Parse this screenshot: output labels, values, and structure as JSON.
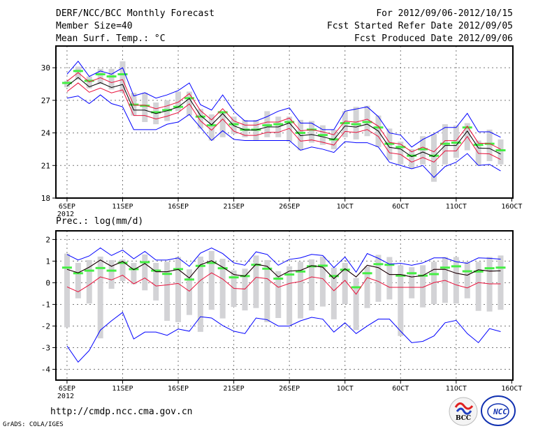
{
  "header": {
    "title": "DERF/NCC/BCC Monthly Forecast",
    "member_size": "Member Size=40",
    "variable": "Mean Surf. Temp.: °C",
    "period": "For 2012/09/06-2012/10/15",
    "fcst_started": "Fcst Started Refer Date 2012/09/05",
    "fcst_produced": "Fcst Produced Date 2012/09/06"
  },
  "footer": {
    "url": "http://cmdp.ncc.cma.gov.cn",
    "credit": "GrADS: COLA/IGES",
    "logo_bcc": "BCC",
    "logo_ncc": "NCC"
  },
  "colors": {
    "max_min": "#0000ff",
    "spread": "#e8103a",
    "mean": "#000000",
    "obs": "#44ee44",
    "range": "#d3d3d6",
    "grid": "#777777"
  },
  "chart_data": [
    {
      "type": "line",
      "title": "Mean Surf. Temp.: °C",
      "x_tick_labels": [
        "6SEP",
        "11SEP",
        "16SEP",
        "21SEP",
        "26SEP",
        "1OCT",
        "6OCT",
        "11OCT",
        "16OCT"
      ],
      "x_tick_days": [
        0,
        5,
        10,
        15,
        20,
        25,
        30,
        35,
        40
      ],
      "x_year_label": "2012",
      "y_ticks": [
        18,
        21,
        24,
        27,
        30
      ],
      "ylim": [
        18,
        32
      ],
      "xlim": [
        -1,
        40.1
      ],
      "grid": true,
      "days": 40,
      "mean": [
        28.31,
        29.1,
        28.24,
        28.63,
        28.18,
        28.46,
        26.1,
        26.1,
        25.78,
        26.04,
        26.38,
        27.17,
        25.61,
        24.75,
        25.78,
        24.66,
        24.27,
        24.27,
        24.55,
        24.55,
        24.92,
        23.74,
        23.85,
        23.64,
        23.38,
        24.64,
        24.54,
        24.81,
        24.17,
        22.67,
        22.52,
        21.81,
        22.24,
        21.81,
        22.84,
        22.84,
        24.17,
        22.61,
        22.57,
        22.05
      ],
      "spread_above": 0.45,
      "spread_below": 0.5,
      "max": [
        29.4,
        30.6,
        29.2,
        29.7,
        29.4,
        30.0,
        27.4,
        27.7,
        27.2,
        27.5,
        27.9,
        28.6,
        26.6,
        26.1,
        27.5,
        26.0,
        25.1,
        25.1,
        25.5,
        26.0,
        26.3,
        24.9,
        24.9,
        24.3,
        24.3,
        26.0,
        26.2,
        26.4,
        25.5,
        24.0,
        23.8,
        22.7,
        23.4,
        23.9,
        24.5,
        24.5,
        25.8,
        24.1,
        24.1,
        23.6
      ],
      "min": [
        27.2,
        27.4,
        26.7,
        27.5,
        26.7,
        26.4,
        24.3,
        24.3,
        24.3,
        24.8,
        25.0,
        25.7,
        24.5,
        23.3,
        24.2,
        23.4,
        23.3,
        23.3,
        23.3,
        23.3,
        23.3,
        22.4,
        22.7,
        22.5,
        22.2,
        23.2,
        23.1,
        23.1,
        22.7,
        21.3,
        21.0,
        20.7,
        21.0,
        19.9,
        20.9,
        21.3,
        22.1,
        21.0,
        21.1,
        20.5
      ],
      "obs": [
        28.6,
        29.7,
        28.8,
        29.4,
        29.2,
        29.4,
        26.6,
        26.5,
        25.9,
        26.1,
        26.4,
        27.2,
        25.5,
        24.7,
        25.9,
        24.8,
        24.3,
        24.3,
        24.7,
        24.8,
        25.0,
        24.0,
        24.3,
        23.8,
        23.4,
        24.9,
        24.8,
        25.0,
        24.5,
        23.0,
        22.7,
        21.9,
        22.5,
        21.9,
        23.0,
        23.1,
        24.5,
        22.9,
        23.0,
        22.4
      ],
      "range_high": [
        28.8,
        30.1,
        29.2,
        29.9,
        29.9,
        30.6,
        27.7,
        27.7,
        26.8,
        27.0,
        27.8,
        27.8,
        26.2,
        25.7,
        26.0,
        25.5,
        25.2,
        25.2,
        26.0,
        25.5,
        25.5,
        25.2,
        25.1,
        24.7,
        24.3,
        26.0,
        26.4,
        26.5,
        25.6,
        24.4,
        23.2,
        22.5,
        23.7,
        23.9,
        24.8,
        24.7,
        24.9,
        23.3,
        24.3,
        23.4
      ],
      "range_low": [
        28.2,
        28.9,
        28.1,
        28.5,
        28.0,
        27.7,
        25.6,
        25.0,
        24.8,
        25.1,
        26.0,
        25.6,
        24.4,
        23.3,
        23.6,
        23.9,
        23.6,
        23.3,
        23.6,
        23.6,
        23.2,
        22.4,
        23.1,
        22.9,
        22.5,
        23.6,
        23.4,
        23.7,
        22.7,
        21.5,
        21.1,
        20.7,
        21.1,
        19.5,
        21.1,
        21.7,
        22.4,
        21.0,
        21.4,
        21.1
      ]
    },
    {
      "type": "line",
      "title": "Prec.: log(mm/d)",
      "x_tick_labels": [
        "6SEP",
        "11SEP",
        "16SEP",
        "21SEP",
        "26SEP",
        "1OCT",
        "6OCT",
        "11OCT",
        "16OCT"
      ],
      "x_tick_days": [
        0,
        5,
        10,
        15,
        20,
        25,
        30,
        35,
        40
      ],
      "x_year_label": "2012",
      "y_ticks": [
        -4,
        -3,
        -2,
        -1,
        0,
        1,
        2
      ],
      "ylim": [
        -4.5,
        2.4
      ],
      "xlim": [
        -1,
        40.1
      ],
      "grid": true,
      "days": 40,
      "mean": [
        0.62,
        0.46,
        0.72,
        1.05,
        0.76,
        0.99,
        0.6,
        0.89,
        0.51,
        0.51,
        0.62,
        0.22,
        0.83,
        1.02,
        0.72,
        0.38,
        0.3,
        0.86,
        0.76,
        0.27,
        0.54,
        0.57,
        0.79,
        0.72,
        0.19,
        0.65,
        0.27,
        0.81,
        0.7,
        0.38,
        0.38,
        0.27,
        0.33,
        0.62,
        0.62,
        0.44,
        0.35,
        0.6,
        0.54,
        0.55
      ],
      "spread_low": [
        -0.19,
        -0.42,
        -0.1,
        0.27,
        0.13,
        0.35,
        -0.05,
        0.22,
        -0.15,
        -0.1,
        -0.03,
        -0.39,
        0.11,
        0.46,
        0.17,
        -0.26,
        -0.29,
        0.25,
        0.19,
        -0.21,
        -0.03,
        0.06,
        0.27,
        0.19,
        -0.37,
        0.11,
        -0.53,
        0.24,
        0.06,
        -0.21,
        -0.21,
        -0.21,
        -0.21,
        0.01,
        0.11,
        -0.1,
        -0.24,
        0.01,
        -0.05,
        -0.05
      ],
      "max": [
        1.31,
        1.05,
        1.24,
        1.61,
        1.26,
        1.51,
        1.11,
        1.45,
        1.05,
        1.05,
        1.15,
        0.76,
        1.37,
        1.61,
        1.35,
        0.92,
        0.81,
        1.43,
        1.31,
        0.81,
        1.08,
        1.15,
        1.31,
        1.26,
        0.7,
        1.19,
        0.49,
        1.35,
        1.13,
        0.86,
        0.9,
        0.81,
        0.92,
        1.15,
        1.15,
        0.97,
        0.9,
        1.15,
        1.13,
        1.09
      ],
      "min": [
        -2.92,
        -3.67,
        -3.13,
        -2.19,
        -1.76,
        -1.37,
        -2.6,
        -2.28,
        -2.28,
        -2.43,
        -2.14,
        -2.24,
        -1.57,
        -1.63,
        -1.98,
        -2.24,
        -2.35,
        -1.63,
        -1.71,
        -2.0,
        -2.0,
        -1.76,
        -1.6,
        -1.68,
        -2.28,
        -1.85,
        -2.35,
        -2.0,
        -1.68,
        -1.68,
        -2.24,
        -2.77,
        -2.71,
        -2.46,
        -1.85,
        -1.74,
        -2.35,
        -2.77,
        -2.12,
        -2.26
      ],
      "obs": [
        0.7,
        0.44,
        0.56,
        0.68,
        0.56,
        0.92,
        0.63,
        0.95,
        0.56,
        0.41,
        0.63,
        0.15,
        0.78,
        0.92,
        0.67,
        0.25,
        0.31,
        0.83,
        0.65,
        0.19,
        0.38,
        0.52,
        0.76,
        0.79,
        0.31,
        0.6,
        -0.21,
        0.44,
        0.86,
        0.83,
        0.33,
        0.44,
        0.33,
        0.4,
        0.7,
        0.76,
        0.53,
        0.52,
        0.67,
        0.7
      ],
      "range_high": [
        1.35,
        0.92,
        1.05,
        1.21,
        1.05,
        1.08,
        0.92,
        1.31,
        0.92,
        0.97,
        1.19,
        0.62,
        1.21,
        1.47,
        1.11,
        0.57,
        0.65,
        1.26,
        1.05,
        0.54,
        0.76,
        0.97,
        1.08,
        1.21,
        0.7,
        0.92,
        0.22,
        0.76,
        1.29,
        1.19,
        0.81,
        0.72,
        0.81,
        0.97,
        1.19,
        1.19,
        0.97,
        0.97,
        1.19,
        1.26
      ],
      "range_low": [
        -2.06,
        -0.72,
        -0.96,
        -2.57,
        -0.28,
        0.08,
        -0.07,
        -0.35,
        -0.82,
        -1.76,
        -1.82,
        -1.49,
        -2.27,
        -1.25,
        -1.65,
        -1.12,
        -1.28,
        -1.17,
        -1.82,
        -1.63,
        -1.95,
        -1.65,
        -1.28,
        -1.1,
        -1.69,
        -0.99,
        -2.19,
        -1.17,
        -0.88,
        -0.77,
        -2.46,
        -0.72,
        -1.14,
        -0.99,
        -0.93,
        -0.96,
        -0.72,
        -1.3,
        -1.33,
        -1.25
      ]
    }
  ]
}
